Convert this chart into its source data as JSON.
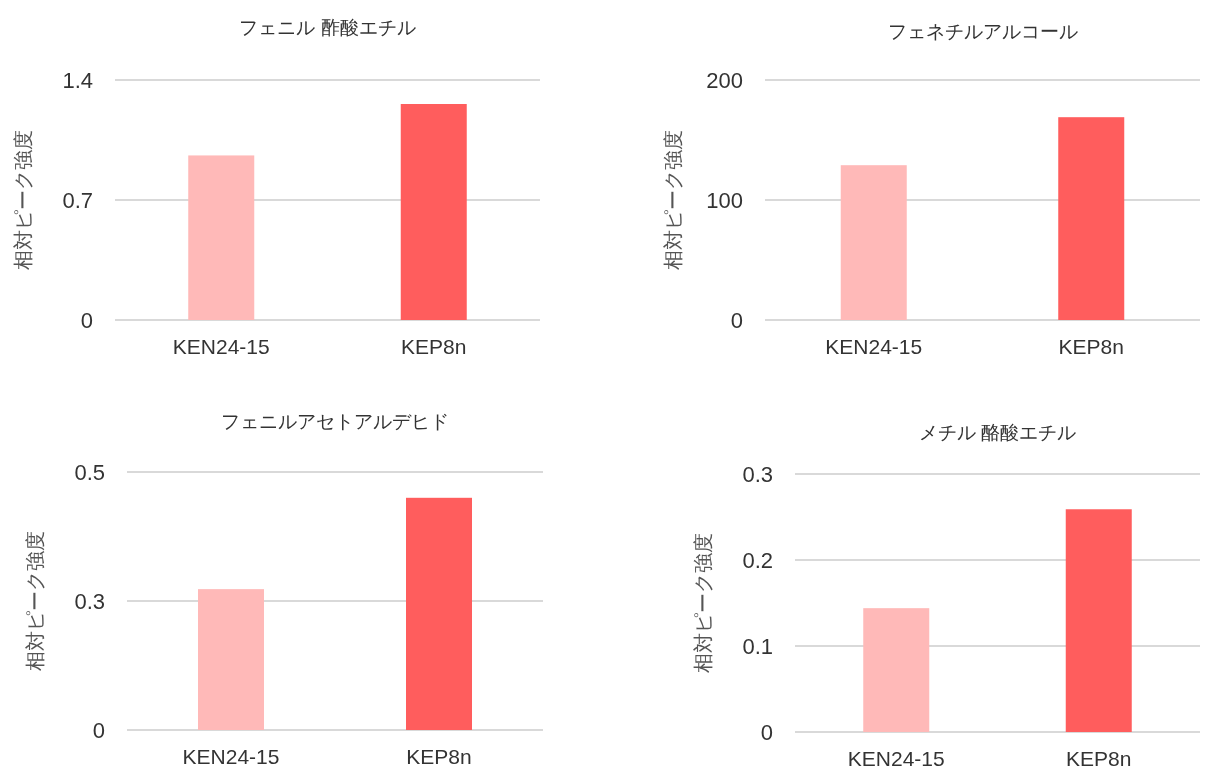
{
  "chart_data": [
    {
      "type": "bar",
      "title": "フェニル 酢酸エチル",
      "ylabel": "相対ピーク強度",
      "categories": [
        "KEN24-15",
        "KEP8n"
      ],
      "values": [
        0.96,
        1.26
      ],
      "colors": [
        "#ffb9b8",
        "#ff5d5d"
      ],
      "ylim": [
        0,
        1.4
      ],
      "yticks": [
        0,
        0.7,
        1.4
      ],
      "grid": "y"
    },
    {
      "type": "bar",
      "title": "フェネチルアルコール",
      "ylabel": "相対ピーク強度",
      "categories": [
        "KEN24-15",
        "KEP8n"
      ],
      "values": [
        129,
        169
      ],
      "colors": [
        "#ffb9b8",
        "#ff5d5d"
      ],
      "ylim": [
        0,
        200
      ],
      "yticks": [
        0,
        100,
        200
      ],
      "grid": "y"
    },
    {
      "type": "bar",
      "title": "フェニルアセトアルデヒド",
      "ylabel": "相対ピーク強度",
      "categories": [
        "KEN24-15",
        "KEP8n"
      ],
      "values": [
        0.273,
        0.45
      ],
      "colors": [
        "#ffb9b8",
        "#ff5d5d"
      ],
      "ylim": [
        0,
        0.5
      ],
      "yticks": [
        0,
        {
          "value": 0.25,
          "label": "0.3"
        },
        0.5
      ],
      "grid": "y"
    },
    {
      "type": "bar",
      "title": "メチル 酪酸エチル",
      "ylabel": "相対ピーク強度",
      "categories": [
        "KEN24-15",
        "KEP8n"
      ],
      "values": [
        0.144,
        0.259
      ],
      "colors": [
        "#ffb9b8",
        "#ff5d5d"
      ],
      "ylim": [
        0,
        0.3
      ],
      "yticks": [
        0,
        0.1,
        0.2,
        0.3
      ],
      "grid": "y"
    }
  ]
}
